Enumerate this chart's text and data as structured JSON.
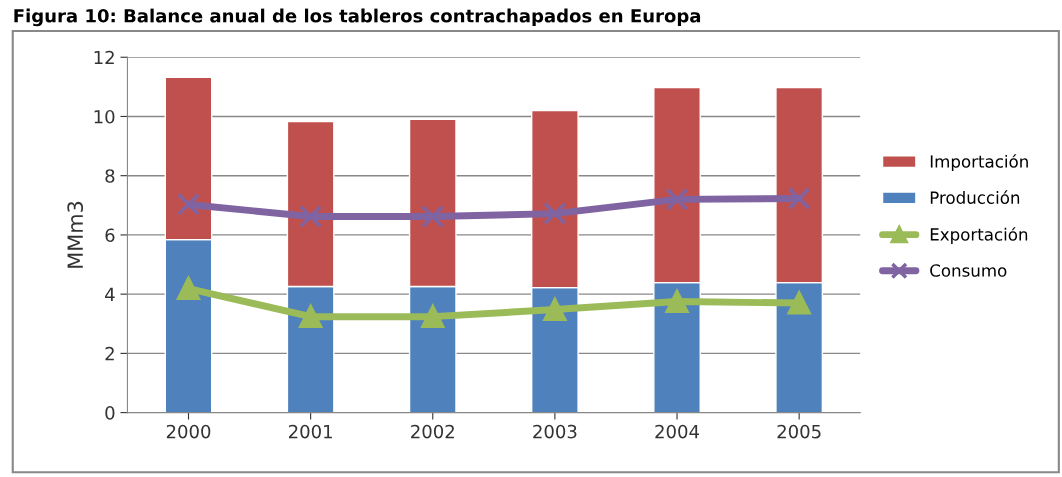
{
  "chart_data": {
    "type": "bar",
    "title": "Figura 10: Balance anual de los tableros contrachapados en Europa",
    "ylabel": "MMm3",
    "categories": [
      "2000",
      "2001",
      "2002",
      "2003",
      "2004",
      "2005"
    ],
    "stacked": true,
    "series": [
      {
        "name": "Producción",
        "color": "#4f81bd",
        "values": [
          5.84,
          4.26,
          4.26,
          4.22,
          4.39,
          4.39
        ]
      },
      {
        "name": "Importación",
        "color": "#c0504d",
        "values": [
          5.48,
          5.57,
          5.64,
          5.98,
          6.59,
          6.59
        ]
      },
      {
        "name": "Exportación",
        "type": "line",
        "marker": "triangle",
        "color": "#9bbb59",
        "values": [
          4.19,
          3.24,
          3.24,
          3.48,
          3.75,
          3.7
        ]
      },
      {
        "name": "Consumo",
        "type": "line",
        "marker": "cross",
        "color": "#8064a2",
        "values": [
          7.03,
          6.62,
          6.62,
          6.72,
          7.2,
          7.23
        ]
      }
    ],
    "ylim": [
      0,
      12
    ],
    "yticks": [
      0,
      2,
      4,
      6,
      8,
      10,
      12
    ],
    "grid": "y",
    "legend": "right"
  }
}
